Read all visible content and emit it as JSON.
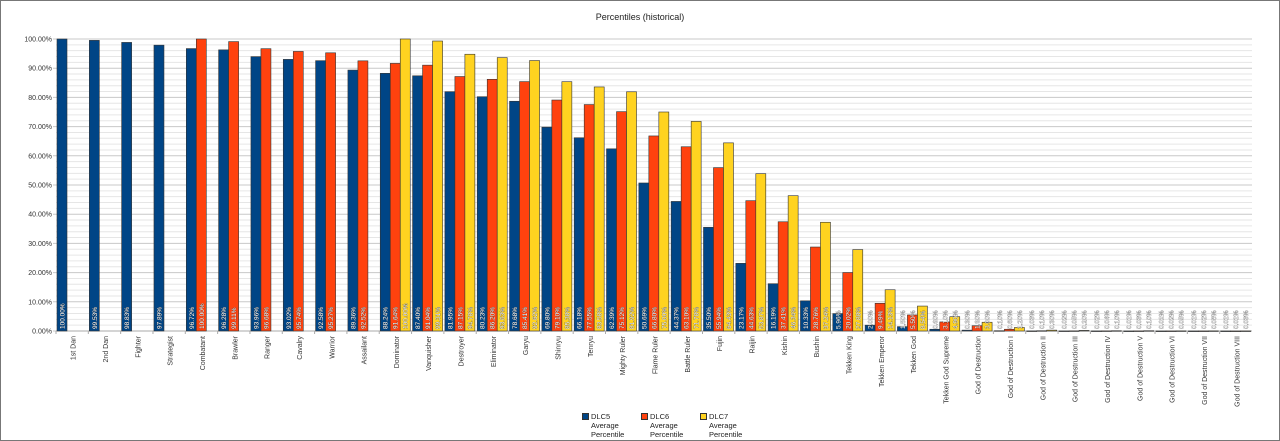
{
  "chart_data": {
    "type": "bar",
    "title": "Percentiles (historical)",
    "xlabel": "",
    "ylabel": "",
    "ylim": [
      0,
      100
    ],
    "y_tick_format": "0.00%",
    "y_ticks": [
      "0.00%",
      "10.00%",
      "20.00%",
      "30.00%",
      "40.00%",
      "50.00%",
      "60.00%",
      "70.00%",
      "80.00%",
      "90.00%",
      "100.00%"
    ],
    "grid": true,
    "legend_position": "bottom",
    "categories": [
      "1st Dan",
      "2nd Dan",
      "Fighter",
      "Strategist",
      "Combatant",
      "Brawler",
      "Ranger",
      "Cavalry",
      "Warrior",
      "Assailant",
      "Dominator",
      "Vanquisher",
      "Destroyer",
      "Eliminator",
      "Garyu",
      "Shinryu",
      "Tenryu",
      "Mighty Ruler",
      "Flame Ruler",
      "Battle Ruler",
      "Fujin",
      "Raijin",
      "Kishin",
      "Bushin",
      "Tekken King",
      "Tekken Emperor",
      "Tekken God",
      "Tekken God Supreme",
      "God of Destruction",
      "God of Destruction I",
      "God of Destruction II",
      "God of Destruction III",
      "God of Destruction IV",
      "God of Destruction V",
      "God of Destruction VI",
      "God of Destruction VII",
      "God of Destruction VIII"
    ],
    "series": [
      {
        "name": "DLC5 Average Percentile",
        "color": "#004586",
        "values": [
          100.0,
          99.53,
          98.83,
          97.89,
          96.72,
          96.28,
          93.96,
          93.02,
          92.58,
          89.36,
          88.24,
          87.4,
          81.95,
          80.23,
          78.68,
          69.8,
          66.18,
          62.39,
          50.69,
          44.37,
          35.5,
          23.17,
          16.19,
          10.33,
          5.96,
          2.0,
          1.5,
          0.6,
          0.3,
          0.1,
          0.03,
          0.02,
          0.02,
          0.01,
          0.01,
          0.01,
          0.01
        ]
      },
      {
        "name": "DLC6 Average Percentile",
        "color": "#ff420e",
        "values": [
          null,
          null,
          null,
          null,
          100.0,
          99.11,
          96.68,
          95.74,
          95.27,
          92.52,
          91.64,
          91.04,
          87.15,
          86.2,
          85.41,
          79.1,
          77.55,
          75.12,
          66.8,
          63.1,
          55.94,
          44.63,
          37.41,
          28.76,
          20.02,
          9.49,
          5.5,
          3.1,
          1.8,
          0.6,
          0.1,
          0.05,
          0.04,
          0.03,
          0.02,
          0.02,
          0.01
        ]
      },
      {
        "name": "DLC7 Average Percentile",
        "color": "#ffd320",
        "values": [
          null,
          null,
          null,
          null,
          null,
          null,
          null,
          null,
          null,
          null,
          100.0,
          99.31,
          94.78,
          93.63,
          92.62,
          85.38,
          83.58,
          81.92,
          75.0,
          71.78,
          64.43,
          53.87,
          46.34,
          37.24,
          27.88,
          14.13,
          8.54,
          4.9,
          3.0,
          1.2,
          0.3,
          0.2,
          0.1,
          0.1,
          0.05,
          0.05,
          0.03
        ]
      }
    ]
  },
  "legend": [
    {
      "line1": "DLC5",
      "line2": "Average",
      "line3": "Percentile"
    },
    {
      "line1": "DLC6",
      "line2": "Average",
      "line3": "Percentile"
    },
    {
      "line1": "DLC7",
      "line2": "Average",
      "line3": "Percentile"
    }
  ]
}
